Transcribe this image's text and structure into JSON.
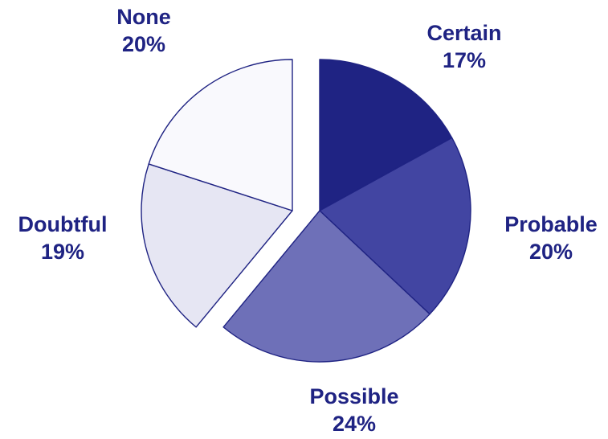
{
  "chart_data": {
    "type": "pie",
    "title": "",
    "legend": "none",
    "slices": [
      {
        "label": "Certain",
        "value": 17,
        "value_label": "17%",
        "color": "#1f2383",
        "exploded": false
      },
      {
        "label": "Probable",
        "value": 20,
        "value_label": "20%",
        "color": "#4245a2",
        "exploded": false
      },
      {
        "label": "Possible",
        "value": 24,
        "value_label": "24%",
        "color": "#6e70b8",
        "exploded": false
      },
      {
        "label": "Doubtful",
        "value": 19,
        "value_label": "19%",
        "color": "#e6e6f3",
        "exploded": true
      },
      {
        "label": "None",
        "value": 20,
        "value_label": "20%",
        "color": "#f9f9fd",
        "exploded": true
      }
    ],
    "label_color": "#1f2383"
  }
}
